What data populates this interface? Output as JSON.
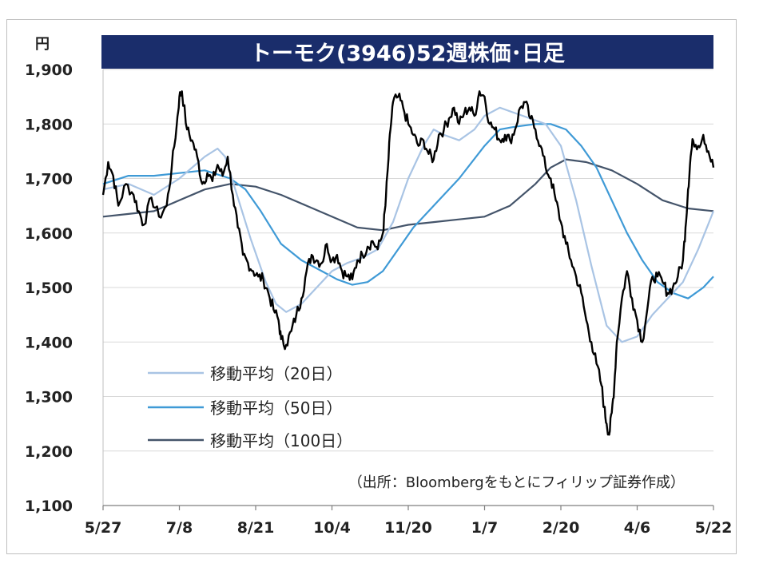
{
  "chart_data": {
    "type": "line",
    "title": "トーモク(3946)52週株価･日足",
    "unit_label": "円",
    "source_note": "（出所：Bloombergをもとにフィリップ証券作成）",
    "ylim": [
      1100,
      1900
    ],
    "y_ticks": [
      1900,
      1800,
      1700,
      1600,
      1500,
      1400,
      1300,
      1200,
      1100
    ],
    "y_tick_labels": [
      "1,900",
      "1,800",
      "1,700",
      "1,600",
      "1,500",
      "1,400",
      "1,300",
      "1,200",
      "1,100"
    ],
    "xlim": [
      0,
      240
    ],
    "x_ticks": [
      0,
      30,
      60,
      90,
      120,
      150,
      180,
      210,
      240
    ],
    "x_tick_labels": [
      "5/27",
      "7/8",
      "8/21",
      "10/4",
      "11/20",
      "1/7",
      "2/20",
      "4/6",
      "5/22"
    ],
    "grid": "horizontal",
    "legend_position": "bottom-left",
    "colors": {
      "price": "#000000",
      "ma20": "#a9c4e4",
      "ma50": "#3f9ad6",
      "ma100": "#44546a",
      "title_bg": "#1a2d6b",
      "title_fg": "#ffffff",
      "grid": "#d9d9d9"
    },
    "price": {
      "keyframes": [
        [
          0,
          1670
        ],
        [
          2,
          1730
        ],
        [
          4,
          1705
        ],
        [
          6,
          1650
        ],
        [
          9,
          1690
        ],
        [
          12,
          1670
        ],
        [
          14,
          1640
        ],
        [
          16,
          1615
        ],
        [
          19,
          1665
        ],
        [
          22,
          1630
        ],
        [
          25,
          1650
        ],
        [
          27,
          1720
        ],
        [
          29,
          1800
        ],
        [
          30,
          1850
        ],
        [
          31,
          1860
        ],
        [
          33,
          1790
        ],
        [
          35,
          1770
        ],
        [
          37,
          1740
        ],
        [
          39,
          1690
        ],
        [
          41,
          1710
        ],
        [
          43,
          1695
        ],
        [
          45,
          1725
        ],
        [
          47,
          1705
        ],
        [
          49,
          1740
        ],
        [
          51,
          1670
        ],
        [
          53,
          1610
        ],
        [
          55,
          1560
        ],
        [
          57,
          1545
        ],
        [
          59,
          1530
        ],
        [
          61,
          1520
        ],
        [
          63,
          1515
        ],
        [
          65,
          1490
        ],
        [
          67,
          1460
        ],
        [
          69,
          1440
        ],
        [
          70,
          1405
        ],
        [
          72,
          1395
        ],
        [
          74,
          1420
        ],
        [
          76,
          1450
        ],
        [
          78,
          1480
        ],
        [
          80,
          1530
        ],
        [
          82,
          1560
        ],
        [
          84,
          1550
        ],
        [
          86,
          1545
        ],
        [
          88,
          1580
        ],
        [
          90,
          1550
        ],
        [
          92,
          1560
        ],
        [
          94,
          1530
        ],
        [
          96,
          1520
        ],
        [
          98,
          1515
        ],
        [
          100,
          1550
        ],
        [
          102,
          1560
        ],
        [
          104,
          1575
        ],
        [
          106,
          1585
        ],
        [
          108,
          1570
        ],
        [
          110,
          1600
        ],
        [
          111,
          1650
        ],
        [
          112,
          1720
        ],
        [
          113,
          1790
        ],
        [
          114,
          1840
        ],
        [
          116,
          1850
        ],
        [
          118,
          1830
        ],
        [
          120,
          1800
        ],
        [
          122,
          1780
        ],
        [
          124,
          1760
        ],
        [
          126,
          1770
        ],
        [
          128,
          1745
        ],
        [
          130,
          1735
        ],
        [
          132,
          1780
        ],
        [
          134,
          1790
        ],
        [
          136,
          1810
        ],
        [
          138,
          1830
        ],
        [
          140,
          1800
        ],
        [
          142,
          1820
        ],
        [
          144,
          1830
        ],
        [
          146,
          1815
        ],
        [
          148,
          1860
        ],
        [
          150,
          1850
        ],
        [
          152,
          1800
        ],
        [
          154,
          1790
        ],
        [
          156,
          1770
        ],
        [
          158,
          1780
        ],
        [
          160,
          1770
        ],
        [
          162,
          1790
        ],
        [
          164,
          1830
        ],
        [
          166,
          1840
        ],
        [
          168,
          1810
        ],
        [
          170,
          1790
        ],
        [
          172,
          1760
        ],
        [
          174,
          1720
        ],
        [
          176,
          1700
        ],
        [
          178,
          1660
        ],
        [
          180,
          1620
        ],
        [
          182,
          1580
        ],
        [
          184,
          1550
        ],
        [
          186,
          1520
        ],
        [
          188,
          1490
        ],
        [
          190,
          1440
        ],
        [
          192,
          1400
        ],
        [
          194,
          1360
        ],
        [
          196,
          1320
        ],
        [
          197,
          1280
        ],
        [
          198,
          1250
        ],
        [
          199,
          1230
        ],
        [
          200,
          1270
        ],
        [
          201,
          1320
        ],
        [
          202,
          1400
        ],
        [
          204,
          1480
        ],
        [
          206,
          1530
        ],
        [
          208,
          1480
        ],
        [
          210,
          1440
        ],
        [
          212,
          1400
        ],
        [
          214,
          1460
        ],
        [
          216,
          1520
        ],
        [
          218,
          1520
        ],
        [
          220,
          1510
        ],
        [
          222,
          1490
        ],
        [
          224,
          1500
        ],
        [
          226,
          1520
        ],
        [
          228,
          1550
        ],
        [
          229,
          1610
        ],
        [
          230,
          1680
        ],
        [
          231,
          1740
        ],
        [
          232,
          1770
        ],
        [
          234,
          1760
        ],
        [
          236,
          1780
        ],
        [
          238,
          1750
        ],
        [
          240,
          1720
        ]
      ]
    },
    "series": [
      {
        "name": "移動平均（20日）",
        "keyframes": [
          [
            0,
            1680
          ],
          [
            10,
            1690
          ],
          [
            20,
            1670
          ],
          [
            30,
            1700
          ],
          [
            40,
            1740
          ],
          [
            45,
            1755
          ],
          [
            48,
            1740
          ],
          [
            52,
            1680
          ],
          [
            58,
            1590
          ],
          [
            64,
            1510
          ],
          [
            68,
            1470
          ],
          [
            72,
            1455
          ],
          [
            78,
            1470
          ],
          [
            84,
            1500
          ],
          [
            90,
            1530
          ],
          [
            96,
            1545
          ],
          [
            102,
            1555
          ],
          [
            108,
            1570
          ],
          [
            114,
            1620
          ],
          [
            120,
            1700
          ],
          [
            126,
            1760
          ],
          [
            130,
            1790
          ],
          [
            134,
            1780
          ],
          [
            140,
            1770
          ],
          [
            146,
            1790
          ],
          [
            150,
            1815
          ],
          [
            156,
            1830
          ],
          [
            162,
            1820
          ],
          [
            168,
            1810
          ],
          [
            174,
            1800
          ],
          [
            180,
            1760
          ],
          [
            186,
            1660
          ],
          [
            192,
            1540
          ],
          [
            198,
            1430
          ],
          [
            204,
            1400
          ],
          [
            210,
            1410
          ],
          [
            216,
            1450
          ],
          [
            222,
            1480
          ],
          [
            228,
            1510
          ],
          [
            234,
            1570
          ],
          [
            240,
            1640
          ]
        ]
      },
      {
        "name": "移動平均（50日）",
        "keyframes": [
          [
            0,
            1690
          ],
          [
            10,
            1705
          ],
          [
            20,
            1705
          ],
          [
            30,
            1710
          ],
          [
            40,
            1715
          ],
          [
            50,
            1700
          ],
          [
            56,
            1680
          ],
          [
            62,
            1640
          ],
          [
            70,
            1580
          ],
          [
            78,
            1550
          ],
          [
            86,
            1530
          ],
          [
            92,
            1515
          ],
          [
            98,
            1505
          ],
          [
            104,
            1510
          ],
          [
            110,
            1530
          ],
          [
            116,
            1570
          ],
          [
            122,
            1610
          ],
          [
            130,
            1650
          ],
          [
            140,
            1700
          ],
          [
            150,
            1760
          ],
          [
            156,
            1790
          ],
          [
            162,
            1795
          ],
          [
            170,
            1800
          ],
          [
            176,
            1800
          ],
          [
            182,
            1790
          ],
          [
            188,
            1760
          ],
          [
            194,
            1720
          ],
          [
            200,
            1660
          ],
          [
            206,
            1600
          ],
          [
            212,
            1550
          ],
          [
            218,
            1510
          ],
          [
            224,
            1490
          ],
          [
            230,
            1480
          ],
          [
            236,
            1500
          ],
          [
            240,
            1520
          ]
        ]
      },
      {
        "name": "移動平均（100日）",
        "keyframes": [
          [
            0,
            1630
          ],
          [
            10,
            1635
          ],
          [
            20,
            1640
          ],
          [
            30,
            1660
          ],
          [
            40,
            1680
          ],
          [
            50,
            1690
          ],
          [
            60,
            1685
          ],
          [
            70,
            1670
          ],
          [
            80,
            1650
          ],
          [
            90,
            1630
          ],
          [
            100,
            1610
          ],
          [
            110,
            1605
          ],
          [
            120,
            1615
          ],
          [
            130,
            1620
          ],
          [
            140,
            1625
          ],
          [
            150,
            1630
          ],
          [
            160,
            1650
          ],
          [
            170,
            1690
          ],
          [
            176,
            1720
          ],
          [
            182,
            1735
          ],
          [
            190,
            1730
          ],
          [
            200,
            1715
          ],
          [
            210,
            1690
          ],
          [
            220,
            1660
          ],
          [
            230,
            1645
          ],
          [
            240,
            1640
          ]
        ]
      }
    ]
  }
}
